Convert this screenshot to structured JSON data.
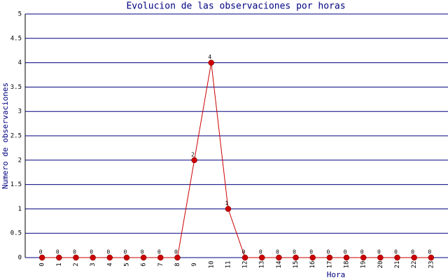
{
  "chart_data": {
    "type": "line",
    "title": "Evolucion de las observaciones por horas",
    "xlabel": "Hora",
    "ylabel": "Numero de observaciones",
    "categories": [
      0,
      1,
      2,
      3,
      4,
      5,
      6,
      7,
      8,
      9,
      10,
      11,
      12,
      13,
      14,
      15,
      16,
      17,
      18,
      19,
      20,
      21,
      22,
      23
    ],
    "values": [
      0,
      0,
      0,
      0,
      0,
      0,
      0,
      0,
      0,
      2,
      4,
      1,
      0,
      0,
      0,
      0,
      0,
      0,
      0,
      0,
      0,
      0,
      0,
      0
    ],
    "color": "#cc0000",
    "ylim": [
      0,
      5
    ],
    "yticks": [
      0,
      0.5,
      1,
      1.5,
      2,
      2.5,
      3,
      3.5,
      4,
      4.5,
      5
    ],
    "grid": true
  }
}
